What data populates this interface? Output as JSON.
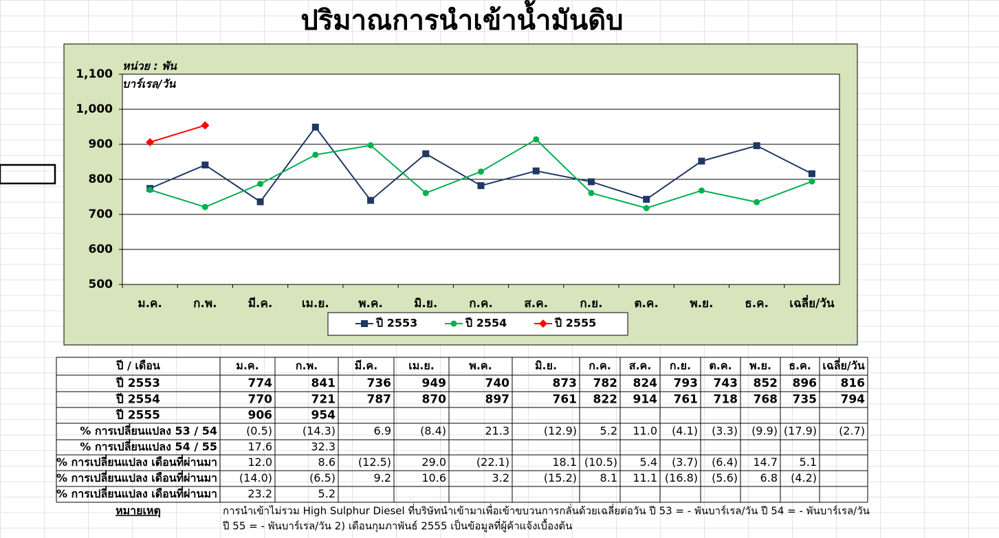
{
  "chart_data": {
    "type": "line",
    "title": "ปริมาณการนำเข้าน้ำมันดิบ",
    "annotations": [
      "หน่วย  : พัน",
      "บาร์เรล/วัน"
    ],
    "categories": [
      "ม.ค.",
      "ก.พ.",
      "มี.ค.",
      "เม.ย.",
      "พ.ค.",
      "มิ.ย.",
      "ก.ค.",
      "ส.ค.",
      "ก.ย.",
      "ต.ค.",
      "พ.ย.",
      "ธ.ค.",
      "เฉลี่ย/วัน"
    ],
    "series": [
      {
        "name": "ปี  2553",
        "color": "#1f3864",
        "marker": "square",
        "values": [
          774,
          841,
          736,
          949,
          740,
          873,
          782,
          824,
          793,
          743,
          852,
          896,
          816
        ]
      },
      {
        "name": "ปี  2554",
        "color": "#00b050",
        "marker": "circle",
        "values": [
          770,
          721,
          787,
          870,
          897,
          761,
          822,
          914,
          761,
          718,
          768,
          735,
          794
        ]
      },
      {
        "name": "ปี  2555",
        "color": "#ff0000",
        "marker": "diamond",
        "values": [
          906,
          954,
          null,
          null,
          null,
          null,
          null,
          null,
          null,
          null,
          null,
          null,
          null
        ]
      }
    ],
    "ylim": [
      500,
      1100
    ],
    "yticks": [
      500,
      600,
      700,
      800,
      900,
      {
        "value": 1000,
        "label": "1,000"
      },
      {
        "value": 1100,
        "label": "1,100"
      }
    ],
    "grid": true,
    "legend": "bottom"
  },
  "table": {
    "corner": "ปี / เดือน",
    "columns": [
      "ม.ค.",
      "ก.พ.",
      "มี.ค.",
      "เม.ย.",
      "พ.ค.",
      "มิ.ย.",
      "ก.ค.",
      "ส.ค.",
      "ก.ย.",
      "ต.ค.",
      "พ.ย.",
      "ธ.ค.",
      "เฉลี่ย/วัน"
    ],
    "rows": [
      {
        "label": "ปี 2553",
        "cells": [
          774,
          841,
          736,
          949,
          740,
          873,
          782,
          824,
          793,
          743,
          852,
          896,
          816
        ]
      },
      {
        "label": "ปี 2554",
        "cells": [
          770,
          721,
          787,
          870,
          897,
          761,
          822,
          914,
          761,
          718,
          768,
          735,
          794
        ]
      },
      {
        "label": "ปี 2555",
        "cells": [
          906,
          954
        ]
      },
      {
        "label": "% การเปลี่ยนแปลง 53 / 54",
        "cells": [
          "(0.5)",
          "(14.3)",
          "6.9",
          "(8.4)",
          "21.3",
          "(12.9)",
          "5.2",
          "11.0",
          "(4.1)",
          "(3.3)",
          "(9.9)",
          "(17.9)",
          "(2.7)"
        ]
      },
      {
        "label": "% การเปลี่ยนแปลง 54 / 55",
        "cells": [
          "17.6",
          "32.3"
        ]
      },
      {
        "label": "% การเปลี่ยนแปลง  เดือนที่ผ่านมา",
        "cells": [
          "12.0",
          "8.6",
          "(12.5)",
          "29.0",
          "(22.1)",
          "18.1",
          "(10.5)",
          "5.4",
          "(3.7)",
          "(6.4)",
          "14.7",
          "5.1"
        ]
      },
      {
        "label": "% การเปลี่ยนแปลง  เดือนที่ผ่านมา",
        "cells": [
          "(14.0)",
          "(6.5)",
          "9.2",
          "10.6",
          "3.2",
          "(15.2)",
          "8.1",
          "11.1",
          "(16.8)",
          "(5.6)",
          "6.8",
          "(4.2)"
        ]
      },
      {
        "label": "% การเปลี่ยนแปลง  เดือนที่ผ่านมา",
        "cells": [
          "23.2",
          "5.2"
        ]
      }
    ],
    "note_label": "หมายเหตุ",
    "note_lines": [
      "การนำเข้าไม่รวม High Sulphur Diesel ที่บริษัทนำเข้ามาเพื่อเข้าขบวนการกลั่นด้วยเฉลี่ยต่อวัน  ปี 53 = - พันบาร์เรล/วัน   ปี 54 = -  พันบาร์เรล/วัน",
      "ปี 55 = - พันบาร์เรล/วัน  2)  เดือนกุมภาพันธ์ 2555  เป็นข้อมูลที่ผู้ค้าแจ้งเบื้องต้น"
    ]
  }
}
